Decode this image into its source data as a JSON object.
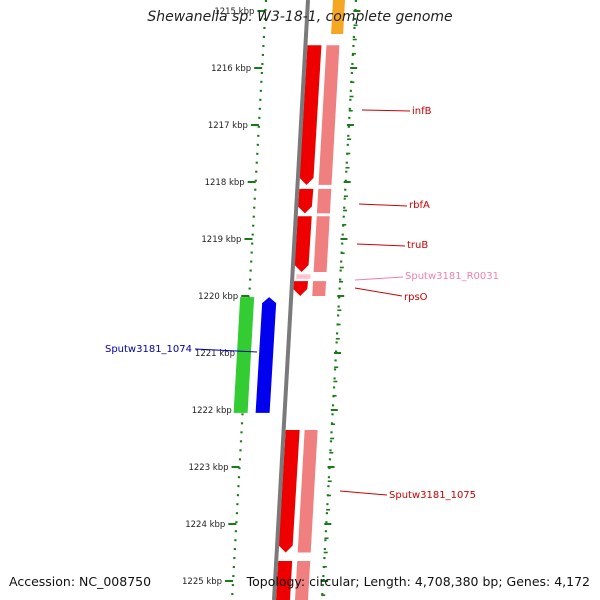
{
  "title": "Shewanella sp. W3-18-1, complete genome",
  "footer": {
    "accession": "Accession: NC_008750",
    "topology": "Topology: circular; Length: 4,708,380 bp; Genes: 4,172"
  },
  "colors": {
    "backbone": "#7a7a7a",
    "tick": "#1a7a1a",
    "cds_plus": "#ee0000",
    "cds_plus_shadow": "#f08080",
    "cds_minus_green": "#33cc33",
    "cds_minus_blue": "#0000ee",
    "rna": "#ffc0d0",
    "label_red": "#cc0000",
    "label_blue": "#0000aa",
    "label_pink": "#f080b0"
  },
  "scale": {
    "unit": "kbp",
    "ticks": [
      {
        "kbp": 1215,
        "label": "1215 kbp"
      },
      {
        "kbp": 1216,
        "label": "1216 kbp"
      },
      {
        "kbp": 1217,
        "label": "1217 kbp"
      },
      {
        "kbp": 1218,
        "label": "1218 kbp"
      },
      {
        "kbp": 1219,
        "label": "1219 kbp"
      },
      {
        "kbp": 1220,
        "label": "1220 kbp"
      },
      {
        "kbp": 1221,
        "label": "1221 kbp"
      },
      {
        "kbp": 1222,
        "label": "1222 kbp"
      },
      {
        "kbp": 1223,
        "label": "1223 kbp"
      },
      {
        "kbp": 1224,
        "label": "1224 kbp"
      },
      {
        "kbp": 1225,
        "label": "1225 kbp"
      }
    ]
  },
  "features": [
    {
      "name": "infB",
      "type": "cds",
      "strand": "+",
      "start_kbp": 1215.6,
      "end_kbp": 1218.05,
      "label_color": "#cc0000"
    },
    {
      "name": "rbfA",
      "type": "cds",
      "strand": "+",
      "start_kbp": 1218.12,
      "end_kbp": 1218.55,
      "label_color": "#cc0000"
    },
    {
      "name": "truB",
      "type": "cds",
      "strand": "+",
      "start_kbp": 1218.6,
      "end_kbp": 1219.58,
      "label_color": "#cc0000"
    },
    {
      "name": "Sputw3181_R0031",
      "type": "rna",
      "strand": "+",
      "start_kbp": 1219.62,
      "end_kbp": 1219.7,
      "label_color": "#f080b0"
    },
    {
      "name": "rpsO",
      "type": "cds",
      "strand": "+",
      "start_kbp": 1219.74,
      "end_kbp": 1220.0,
      "label_color": "#cc0000"
    },
    {
      "name": "Sputw3181_1074",
      "type": "cds",
      "strand": "-",
      "start_kbp": 1220.02,
      "end_kbp": 1222.05,
      "label_color": "#0000aa"
    },
    {
      "name": "Sputw3181_1075",
      "type": "cds",
      "strand": "+",
      "start_kbp": 1222.35,
      "end_kbp": 1224.5,
      "label_color": "#cc0000"
    },
    {
      "name": "",
      "type": "cds",
      "strand": "+",
      "start_kbp": 1224.65,
      "end_kbp": 1225.4,
      "label_color": "#cc0000"
    }
  ]
}
